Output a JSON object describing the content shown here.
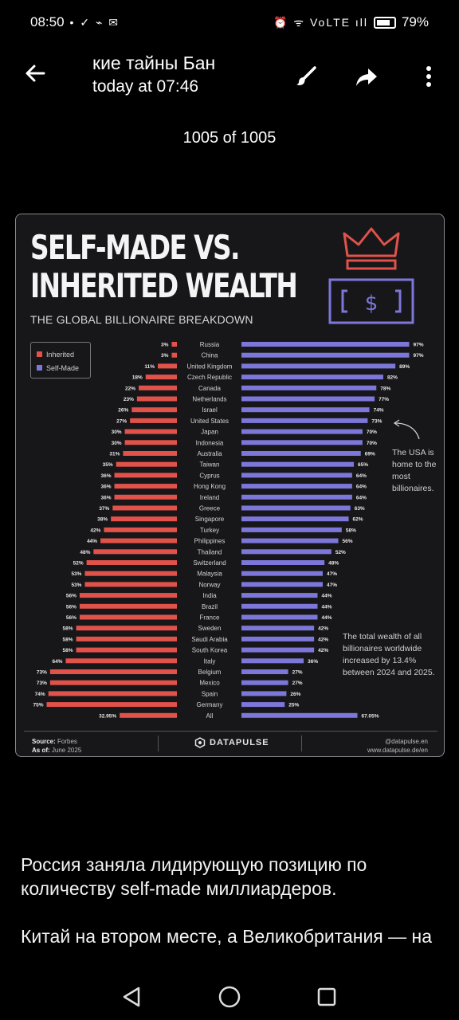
{
  "status": {
    "time": "08:50",
    "battery": "79%",
    "left_icons": "• ✓ ⌁ ✉",
    "right_icons": "⏰ ᯤ VoLTE ıll"
  },
  "app_bar": {
    "title": "кие тайны    Бан",
    "subtitle": "today at 07:46",
    "back_icon": "back-arrow-icon",
    "brush_icon": "brush-icon",
    "share_icon": "share-icon",
    "more_icon": "more-vertical-icon"
  },
  "viewer": {
    "counter": "1005 of 1005"
  },
  "infographic": {
    "title_line1": "SELF-MADE VS.",
    "title_line2": "INHERITED WEALTH",
    "subtitle": "THE GLOBAL BILLIONAIRE BREAKDOWN",
    "annotation_usa": "The USA is home to the most billionaires.",
    "annotation_total": "The total wealth of all billionaires worldwide increased by 13.4% between 2024 and 2025.",
    "footer": {
      "source_label": "Source:",
      "source_value": "Forbes",
      "asof_label": "As of:",
      "asof_value": "June 2025",
      "brand": "DATAPULSE",
      "handle": "@datapulse.en",
      "url": "www.datapulse.de/en"
    }
  },
  "chart_data": {
    "type": "bar",
    "orientation": "horizontal-diverging",
    "colors": {
      "inherited": "#e0524a",
      "self_made": "#7c77d9"
    },
    "categories": [
      "Russia",
      "China",
      "United Kingdom",
      "Czech Republic",
      "Canada",
      "Netherlands",
      "Israel",
      "United States",
      "Japan",
      "Indonesia",
      "Australia",
      "Taiwan",
      "Cyprus",
      "Hong Kong",
      "Ireland",
      "Greece",
      "Singapore",
      "Turkey",
      "Philippines",
      "Thailand",
      "Switzerland",
      "Malaysia",
      "Norway",
      "India",
      "Brazil",
      "France",
      "Sweden",
      "Saudi Arabia",
      "South Korea",
      "Italy",
      "Belgium",
      "Mexico",
      "Spain",
      "Germany",
      "All"
    ],
    "series": [
      {
        "name": "Inherited",
        "labels": [
          "3%",
          "3%",
          "11%",
          "18%",
          "22%",
          "23%",
          "26%",
          "27%",
          "30%",
          "30%",
          "31%",
          "35%",
          "36%",
          "36%",
          "36%",
          "37%",
          "38%",
          "42%",
          "44%",
          "48%",
          "52%",
          "53%",
          "53%",
          "56%",
          "56%",
          "56%",
          "58%",
          "58%",
          "58%",
          "64%",
          "73%",
          "73%",
          "74%",
          "75%",
          "32.95%"
        ],
        "values": [
          3,
          3,
          11,
          18,
          22,
          23,
          26,
          27,
          30,
          30,
          31,
          35,
          36,
          36,
          36,
          37,
          38,
          42,
          44,
          48,
          52,
          53,
          53,
          56,
          56,
          56,
          58,
          58,
          58,
          64,
          73,
          73,
          74,
          75,
          32.95
        ]
      },
      {
        "name": "Self-Made",
        "labels": [
          "97%",
          "97%",
          "89%",
          "82%",
          "78%",
          "77%",
          "74%",
          "73%",
          "70%",
          "70%",
          "69%",
          "65%",
          "64%",
          "64%",
          "64%",
          "63%",
          "62%",
          "58%",
          "56%",
          "52%",
          "48%",
          "47%",
          "47%",
          "44%",
          "44%",
          "44%",
          "42%",
          "42%",
          "42%",
          "36%",
          "27%",
          "27%",
          "26%",
          "25%",
          "67.05%"
        ],
        "values": [
          97,
          97,
          89,
          82,
          78,
          77,
          74,
          73,
          70,
          70,
          69,
          65,
          64,
          64,
          64,
          63,
          62,
          58,
          56,
          52,
          48,
          47,
          47,
          44,
          44,
          44,
          42,
          42,
          42,
          36,
          27,
          27,
          26,
          25,
          67.05
        ]
      }
    ]
  },
  "caption": {
    "paragraph1": "Россия заняла лидирующую позицию по количеству self-made миллиардеров.",
    "paragraph2": "Китай на втором месте, а Великобритания — на третьем."
  },
  "nav": {
    "back_icon": "nav-back-icon",
    "home_icon": "nav-home-icon",
    "recents_icon": "nav-recents-icon"
  }
}
